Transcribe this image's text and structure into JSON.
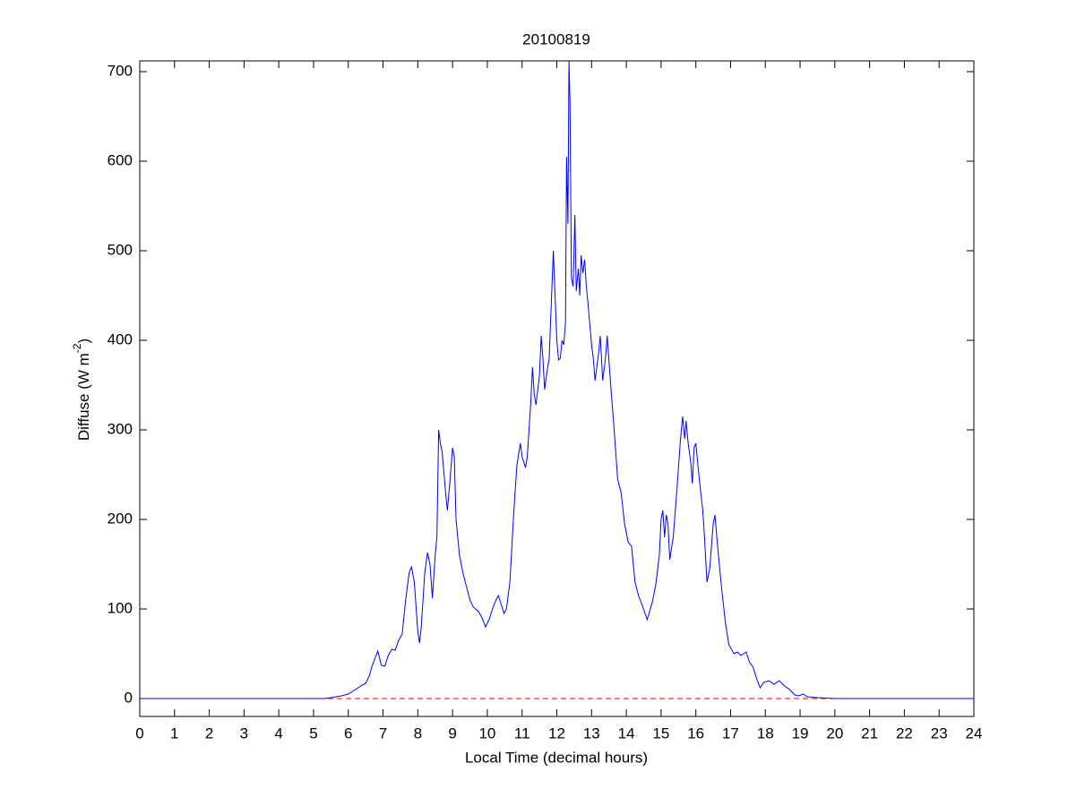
{
  "chart_data": {
    "type": "line",
    "title": "20100819",
    "xlabel": "Local Time (decimal hours)",
    "ylabel": "Diffuse (W m",
    "ylabel_sup": "-2",
    "ylabel_end": ")",
    "xlim": [
      0,
      24
    ],
    "xticks": [
      0,
      1,
      2,
      3,
      4,
      5,
      6,
      7,
      8,
      9,
      10,
      11,
      12,
      13,
      14,
      15,
      16,
      17,
      18,
      19,
      20,
      21,
      22,
      23,
      24
    ],
    "ylim": [
      -20,
      712
    ],
    "yticks": [
      0,
      100,
      200,
      300,
      400,
      500,
      600,
      700
    ],
    "grid": false,
    "reference_line": {
      "value": 0,
      "color": "#ff0000",
      "dash": true
    },
    "series": [
      {
        "color": "#0000ff",
        "x": [
          0,
          5.3,
          5.5,
          5.8,
          6.0,
          6.2,
          6.4,
          6.5,
          6.6,
          6.7,
          6.85,
          6.95,
          7.05,
          7.15,
          7.25,
          7.35,
          7.45,
          7.55,
          7.65,
          7.75,
          7.82,
          7.9,
          8.0,
          8.05,
          8.1,
          8.2,
          8.28,
          8.35,
          8.42,
          8.5,
          8.55,
          8.6,
          8.65,
          8.7,
          8.8,
          8.85,
          8.92,
          9.0,
          9.05,
          9.1,
          9.2,
          9.3,
          9.4,
          9.5,
          9.6,
          9.75,
          9.85,
          9.95,
          10.05,
          10.15,
          10.25,
          10.32,
          10.4,
          10.48,
          10.55,
          10.65,
          10.75,
          10.85,
          10.95,
          11.0,
          11.1,
          11.15,
          11.25,
          11.3,
          11.35,
          11.4,
          11.5,
          11.55,
          11.6,
          11.65,
          11.7,
          11.78,
          11.85,
          11.9,
          11.95,
          12.0,
          12.05,
          12.1,
          12.15,
          12.2,
          12.25,
          12.28,
          12.32,
          12.35,
          12.38,
          12.42,
          12.47,
          12.52,
          12.56,
          12.62,
          12.66,
          12.7,
          12.75,
          12.8,
          12.85,
          12.9,
          13.0,
          13.05,
          13.1,
          13.2,
          13.25,
          13.32,
          13.4,
          13.45,
          13.55,
          13.65,
          13.75,
          13.85,
          13.95,
          14.05,
          14.15,
          14.25,
          14.35,
          14.45,
          14.6,
          14.75,
          14.85,
          14.95,
          15.0,
          15.05,
          15.1,
          15.15,
          15.2,
          15.25,
          15.35,
          15.45,
          15.55,
          15.62,
          15.68,
          15.72,
          15.78,
          15.85,
          15.9,
          15.95,
          16.0,
          16.1,
          16.2,
          16.25,
          16.32,
          16.4,
          16.5,
          16.55,
          16.65,
          16.75,
          16.85,
          16.95,
          17.1,
          17.2,
          17.3,
          17.45,
          17.55,
          17.65,
          17.75,
          17.85,
          17.95,
          18.1,
          18.25,
          18.4,
          18.55,
          18.7,
          18.85,
          18.95,
          19.1,
          19.2,
          19.5,
          20,
          24
        ],
        "values": [
          0,
          0,
          1,
          3,
          5,
          10,
          15,
          17,
          25,
          38,
          53,
          37,
          36,
          48,
          55,
          54,
          65,
          72,
          110,
          140,
          147,
          130,
          75,
          62,
          80,
          140,
          163,
          150,
          112,
          160,
          180,
          300,
          285,
          275,
          230,
          210,
          240,
          280,
          270,
          200,
          160,
          140,
          125,
          110,
          102,
          97,
          90,
          80,
          88,
          100,
          110,
          115,
          105,
          95,
          100,
          130,
          200,
          260,
          285,
          270,
          258,
          270,
          330,
          370,
          340,
          328,
          360,
          405,
          380,
          345,
          360,
          380,
          450,
          500,
          450,
          400,
          378,
          380,
          400,
          395,
          420,
          605,
          530,
          712,
          665,
          470,
          460,
          540,
          455,
          480,
          450,
          495,
          475,
          490,
          460,
          440,
          395,
          380,
          355,
          385,
          405,
          355,
          380,
          405,
          350,
          300,
          245,
          230,
          195,
          175,
          170,
          130,
          115,
          105,
          88,
          108,
          128,
          160,
          200,
          210,
          180,
          205,
          195,
          155,
          180,
          230,
          285,
          315,
          290,
          310,
          285,
          265,
          240,
          280,
          285,
          245,
          210,
          180,
          130,
          145,
          195,
          205,
          160,
          120,
          85,
          60,
          50,
          52,
          48,
          52,
          40,
          35,
          22,
          12,
          18,
          20,
          16,
          20,
          14,
          10,
          4,
          3,
          5,
          2,
          1,
          0,
          0
        ]
      }
    ]
  }
}
